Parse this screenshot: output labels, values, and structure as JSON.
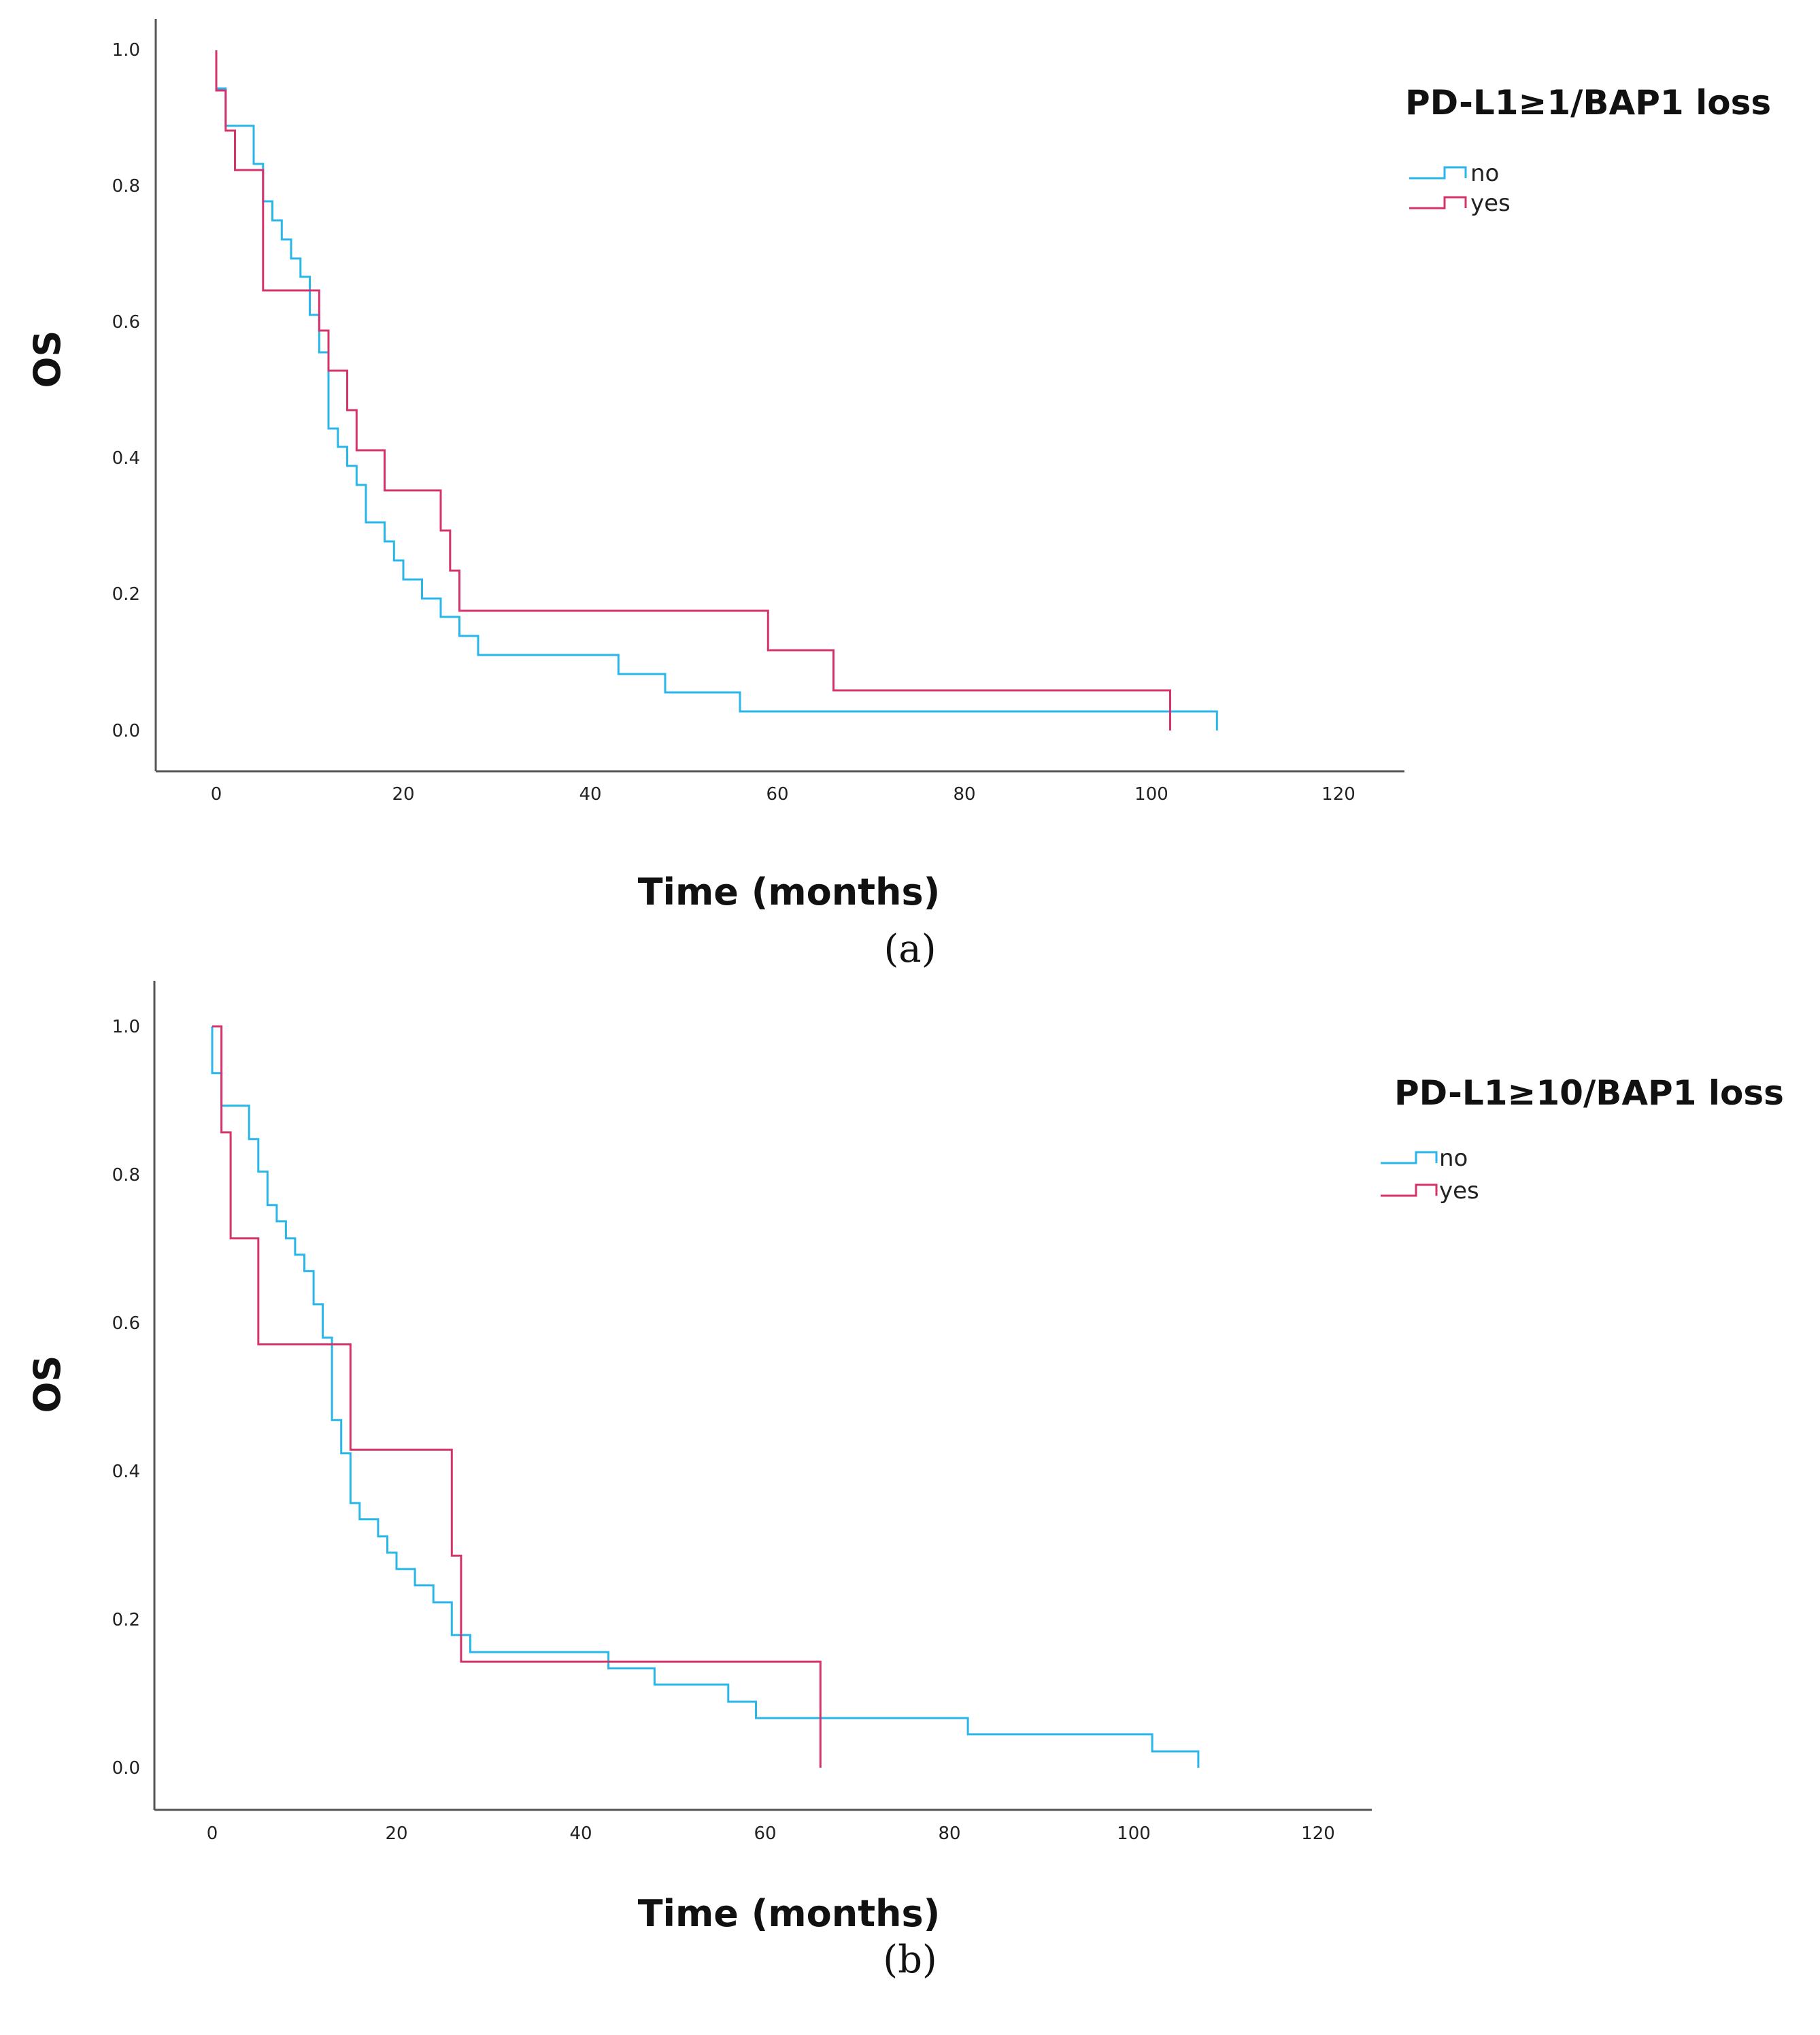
{
  "chart_data": [
    {
      "type": "line",
      "step": true,
      "panel_label": "(a)",
      "xlabel": "Time (months)",
      "ylabel": "OS",
      "xlim": [
        -6,
        126
      ],
      "ylim": [
        -0.05,
        1.05
      ],
      "xticks": [
        0,
        20,
        40,
        60,
        80,
        100,
        120
      ],
      "yticks": [
        0.0,
        0.2,
        0.4,
        0.6,
        0.8,
        1.0
      ],
      "ytick_labels": [
        "0.0",
        "0.2",
        "0.4",
        "0.6",
        "0.8",
        "1.0"
      ],
      "grid": false,
      "legend": {
        "title": "PD-L1≥1/BAP1 loss",
        "position": "right"
      },
      "series": [
        {
          "name": "no",
          "color": "#29b6e8",
          "x": [
            0,
            1,
            4,
            5,
            6,
            7,
            8,
            9,
            10,
            11,
            12,
            13,
            14,
            15,
            16,
            18,
            19,
            20,
            22,
            24,
            26,
            28,
            43,
            48,
            56,
            82,
            107
          ],
          "y": [
            0.944,
            0.889,
            0.833,
            0.778,
            0.75,
            0.722,
            0.694,
            0.667,
            0.611,
            0.556,
            0.444,
            0.417,
            0.389,
            0.361,
            0.306,
            0.278,
            0.25,
            0.222,
            0.194,
            0.167,
            0.139,
            0.111,
            0.083,
            0.056,
            0.028,
            0.028,
            0.0
          ]
        },
        {
          "name": "yes",
          "color": "#d6336c",
          "x": [
            0,
            1,
            2,
            5,
            11,
            12,
            14,
            15,
            18,
            24,
            25,
            26,
            27,
            59,
            66,
            102
          ],
          "y": [
            0.941,
            0.882,
            0.824,
            0.647,
            0.588,
            0.529,
            0.471,
            0.412,
            0.353,
            0.294,
            0.235,
            0.176,
            0.176,
            0.118,
            0.059,
            0.0
          ]
        }
      ]
    },
    {
      "type": "line",
      "step": true,
      "panel_label": "(b)",
      "xlabel": "Time (months)",
      "ylabel": "OS",
      "xlim": [
        -6,
        126
      ],
      "ylim": [
        -0.05,
        1.05
      ],
      "xticks": [
        0,
        20,
        40,
        60,
        80,
        100,
        120
      ],
      "yticks": [
        0.0,
        0.2,
        0.4,
        0.6,
        0.8,
        1.0
      ],
      "ytick_labels": [
        "0.0",
        "0.2",
        "0.4",
        "0.6",
        "0.8",
        "1.0"
      ],
      "grid": false,
      "legend": {
        "title": "PD-L1≥10/BAP1 loss",
        "position": "right"
      },
      "series": [
        {
          "name": "no",
          "color": "#29b6e8",
          "x": [
            0,
            1,
            4,
            5,
            6,
            7,
            8,
            9,
            10,
            11,
            12,
            13,
            14,
            15,
            16,
            18,
            19,
            20,
            22,
            24,
            26,
            28,
            43,
            48,
            56,
            59,
            82,
            102,
            107
          ],
          "y": [
            0.937,
            0.893,
            0.848,
            0.804,
            0.759,
            0.737,
            0.714,
            0.692,
            0.67,
            0.625,
            0.58,
            0.469,
            0.424,
            0.357,
            0.335,
            0.312,
            0.29,
            0.268,
            0.246,
            0.223,
            0.179,
            0.156,
            0.134,
            0.112,
            0.089,
            0.067,
            0.045,
            0.022,
            0.0
          ]
        },
        {
          "name": "yes",
          "color": "#d6336c",
          "x": [
            1,
            2,
            5,
            15,
            26,
            27,
            66
          ],
          "y": [
            0.857,
            0.714,
            0.571,
            0.429,
            0.286,
            0.143,
            0.0
          ]
        }
      ]
    }
  ]
}
